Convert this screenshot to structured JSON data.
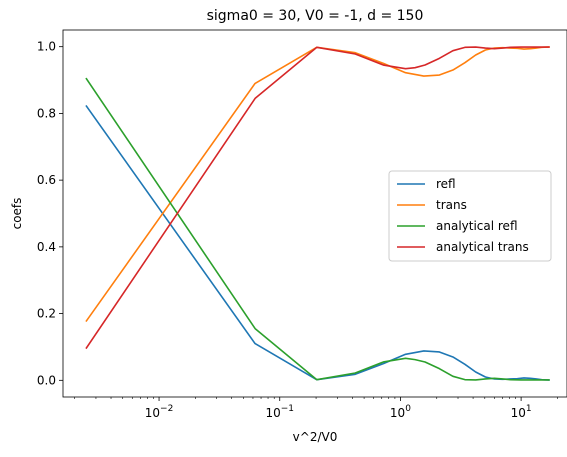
{
  "chart_data": {
    "type": "line",
    "title": "sigma0 = 30, V0 = -1, d = 150",
    "xlabel": "v^2/V0",
    "ylabel": "coefs",
    "xscale": "log",
    "xlim": [
      0.0016,
      24
    ],
    "ylim": [
      -0.05,
      1.05
    ],
    "xticks": [
      {
        "value": 0.01,
        "base": "10",
        "exp": "−2"
      },
      {
        "value": 0.1,
        "base": "10",
        "exp": "−1"
      },
      {
        "value": 1,
        "base": "10",
        "exp": "0"
      },
      {
        "value": 10,
        "base": "10",
        "exp": "1"
      }
    ],
    "yticks": [
      {
        "value": 0.0,
        "label": "0.0"
      },
      {
        "value": 0.2,
        "label": "0.2"
      },
      {
        "value": 0.4,
        "label": "0.4"
      },
      {
        "value": 0.6,
        "label": "0.6"
      },
      {
        "value": 0.8,
        "label": "0.8"
      },
      {
        "value": 1.0,
        "label": "1.0"
      }
    ],
    "legend_position": "center-right",
    "grid": false,
    "series": [
      {
        "name": "refl",
        "color": "#1f77b4",
        "points": [
          [
            0.0025,
            0.822
          ],
          [
            0.0625,
            0.11
          ],
          [
            0.2025,
            0.002
          ],
          [
            0.4225,
            0.018
          ],
          [
            0.7225,
            0.05
          ],
          [
            1.1025,
            0.078
          ],
          [
            1.5625,
            0.088
          ],
          [
            2.1025,
            0.085
          ],
          [
            2.7225,
            0.07
          ],
          [
            3.4225,
            0.048
          ],
          [
            4.2025,
            0.025
          ],
          [
            5.0625,
            0.01
          ],
          [
            6.0025,
            0.004
          ],
          [
            7.0225,
            0.003
          ],
          [
            8.1225,
            0.004
          ],
          [
            9.3025,
            0.005
          ],
          [
            10.5625,
            0.007
          ],
          [
            11.9025,
            0.006
          ],
          [
            13.3225,
            0.004
          ],
          [
            14.8225,
            0.002
          ],
          [
            17.0,
            0.001
          ]
        ]
      },
      {
        "name": "trans",
        "color": "#ff7f0e",
        "points": [
          [
            0.0025,
            0.178
          ],
          [
            0.0625,
            0.89
          ],
          [
            0.2025,
            0.998
          ],
          [
            0.4225,
            0.982
          ],
          [
            0.7225,
            0.95
          ],
          [
            1.1025,
            0.922
          ],
          [
            1.5625,
            0.912
          ],
          [
            2.1025,
            0.915
          ],
          [
            2.7225,
            0.93
          ],
          [
            3.4225,
            0.952
          ],
          [
            4.2025,
            0.975
          ],
          [
            5.0625,
            0.99
          ],
          [
            6.0025,
            0.996
          ],
          [
            7.0225,
            0.997
          ],
          [
            8.1225,
            0.996
          ],
          [
            9.3025,
            0.995
          ],
          [
            10.5625,
            0.993
          ],
          [
            11.9025,
            0.994
          ],
          [
            13.3225,
            0.996
          ],
          [
            14.8225,
            0.998
          ],
          [
            17.0,
            0.999
          ]
        ]
      },
      {
        "name": "analytical refl",
        "color": "#2ca02c",
        "points": [
          [
            0.0025,
            0.904
          ],
          [
            0.0625,
            0.155
          ],
          [
            0.2025,
            0.002
          ],
          [
            0.4225,
            0.022
          ],
          [
            0.7225,
            0.055
          ],
          [
            1.1025,
            0.066
          ],
          [
            1.3225,
            0.062
          ],
          [
            1.6,
            0.055
          ],
          [
            2.1025,
            0.035
          ],
          [
            2.7225,
            0.012
          ],
          [
            3.4225,
            0.002
          ],
          [
            4.2025,
            0.001
          ],
          [
            5.0625,
            0.004
          ],
          [
            6.0025,
            0.006
          ],
          [
            7.0225,
            0.004
          ],
          [
            8.1225,
            0.002
          ],
          [
            10.0,
            0.001
          ],
          [
            13.3225,
            0.001
          ],
          [
            17.0,
            0.001
          ]
        ]
      },
      {
        "name": "analytical trans",
        "color": "#d62728",
        "points": [
          [
            0.0025,
            0.097
          ],
          [
            0.0625,
            0.845
          ],
          [
            0.2025,
            0.998
          ],
          [
            0.4225,
            0.978
          ],
          [
            0.7225,
            0.945
          ],
          [
            1.1025,
            0.934
          ],
          [
            1.3225,
            0.937
          ],
          [
            1.6,
            0.945
          ],
          [
            2.1025,
            0.965
          ],
          [
            2.7225,
            0.988
          ],
          [
            3.4225,
            0.998
          ],
          [
            4.2025,
            0.999
          ],
          [
            5.0625,
            0.996
          ],
          [
            6.0025,
            0.994
          ],
          [
            7.0225,
            0.996
          ],
          [
            8.1225,
            0.998
          ],
          [
            10.0,
            0.999
          ],
          [
            13.3225,
            0.999
          ],
          [
            17.0,
            0.999
          ]
        ]
      }
    ]
  }
}
